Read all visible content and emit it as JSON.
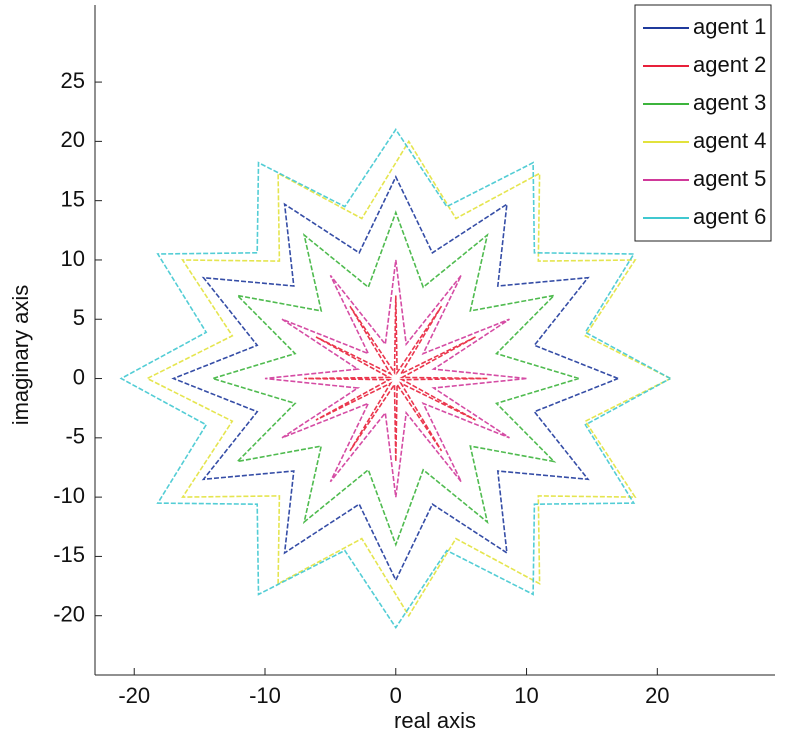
{
  "chart_data": {
    "type": "line",
    "xlabel": "real axis",
    "ylabel": "imaginary axis",
    "xlim": [
      -23,
      29
    ],
    "ylim": [
      -25,
      31.5
    ],
    "xticks": [
      -20,
      -10,
      0,
      10,
      20
    ],
    "yticks": [
      -20,
      -15,
      -10,
      -5,
      0,
      5,
      10,
      15,
      20,
      25
    ],
    "grid": false,
    "legend": "northeast",
    "series": [
      {
        "name": "agent 1",
        "color": "#1f3a9c",
        "x": [
          17,
          10.6,
          14.7,
          7.8,
          8.5,
          2.8,
          0,
          -2.8,
          -8.5,
          -7.8,
          -14.7,
          -10.6,
          -17,
          -10.6,
          -14.7,
          -7.8,
          -8.5,
          -2.8,
          0,
          2.8,
          8.5,
          7.8,
          14.7,
          10.6,
          17
        ],
        "values": [
          0,
          2.8,
          8.5,
          7.8,
          14.7,
          10.6,
          17,
          10.6,
          14.7,
          7.8,
          8.5,
          2.8,
          0,
          -2.8,
          -8.5,
          -7.8,
          -14.7,
          -10.6,
          -17,
          -10.6,
          -14.7,
          -7.8,
          -8.5,
          -2.8,
          0
        ]
      },
      {
        "name": "agent 2",
        "color": "#e8203a",
        "x": [
          7,
          0.5,
          6.1,
          0.4,
          3.5,
          0.1,
          0,
          -0.1,
          -3.5,
          -0.4,
          -6.1,
          -0.5,
          -7,
          -0.5,
          -6.1,
          -0.4,
          -3.5,
          -0.1,
          0,
          0.1,
          3.5,
          0.4,
          6.1,
          0.5,
          7
        ],
        "values": [
          0,
          0.1,
          3.5,
          0.4,
          6.1,
          0.5,
          7,
          0.5,
          6.1,
          0.4,
          3.5,
          0.1,
          0,
          -0.1,
          -3.5,
          -0.4,
          -6.1,
          -0.5,
          -7,
          -0.5,
          -6.1,
          -0.4,
          -3.5,
          -0.1,
          0
        ]
      },
      {
        "name": "agent 3",
        "color": "#3cb43c",
        "x": [
          14,
          7.7,
          12.1,
          5.7,
          7,
          2.1,
          0,
          -2.1,
          -7,
          -5.7,
          -12.1,
          -7.7,
          -14,
          -7.7,
          -12.1,
          -5.7,
          -7,
          -2.1,
          0,
          2.1,
          7,
          5.7,
          12.1,
          7.7,
          14
        ],
        "values": [
          0,
          2.1,
          7,
          5.7,
          12.1,
          7.7,
          14,
          7.7,
          12.1,
          5.7,
          7,
          2.1,
          0,
          -2.1,
          -7,
          -5.7,
          -12.1,
          -7.7,
          -14,
          -7.7,
          -12.1,
          -5.7,
          -7,
          -2.1,
          0
        ]
      },
      {
        "name": "agent 4",
        "color": "#e2e23c",
        "x": [
          21,
          14.5,
          18.3,
          10.9,
          11,
          4.6,
          1,
          -2.6,
          -9,
          -8.9,
          -16.3,
          -12.5,
          -19,
          -12.5,
          -16.3,
          -8.9,
          -9,
          -2.6,
          1,
          4.6,
          11,
          10.9,
          18.3,
          14.5,
          21
        ],
        "values": [
          0,
          3.6,
          10,
          9.9,
          17.3,
          13.5,
          20,
          13.5,
          17.3,
          9.9,
          10,
          3.6,
          0,
          -3.6,
          -10,
          -9.9,
          -17.3,
          -13.5,
          -20,
          -13.5,
          -17.3,
          -9.9,
          -10,
          -3.6,
          0
        ]
      },
      {
        "name": "agent 5",
        "color": "#d0399a",
        "x": [
          10,
          2.9,
          8.7,
          2.1,
          5,
          0.8,
          0,
          -0.8,
          -5,
          -2.1,
          -8.7,
          -2.9,
          -10,
          -2.9,
          -8.7,
          -2.1,
          -5,
          -0.8,
          0,
          0.8,
          5,
          2.1,
          8.7,
          2.9,
          10
        ],
        "values": [
          0,
          0.8,
          5,
          2.1,
          8.7,
          2.9,
          10,
          2.9,
          8.7,
          2.1,
          5,
          0.8,
          0,
          -0.8,
          -5,
          -2.1,
          -8.7,
          -2.9,
          -10,
          -2.9,
          -8.7,
          -2.1,
          -5,
          -0.8,
          0
        ]
      },
      {
        "name": "agent 6",
        "color": "#40c8d0",
        "x": [
          21,
          14.5,
          18.2,
          10.6,
          10.5,
          3.9,
          0,
          -3.9,
          -10.5,
          -10.6,
          -18.2,
          -14.5,
          -21,
          -14.5,
          -18.2,
          -10.6,
          -10.5,
          -3.9,
          0,
          3.9,
          10.5,
          10.6,
          18.2,
          14.5,
          21
        ],
        "values": [
          0,
          3.9,
          10.5,
          10.6,
          18.2,
          14.5,
          21,
          14.5,
          18.2,
          10.6,
          10.5,
          3.9,
          0,
          -3.9,
          -10.5,
          -10.6,
          -18.2,
          -14.5,
          -21,
          -14.5,
          -18.2,
          -10.6,
          -10.5,
          -3.9,
          0
        ]
      }
    ]
  }
}
